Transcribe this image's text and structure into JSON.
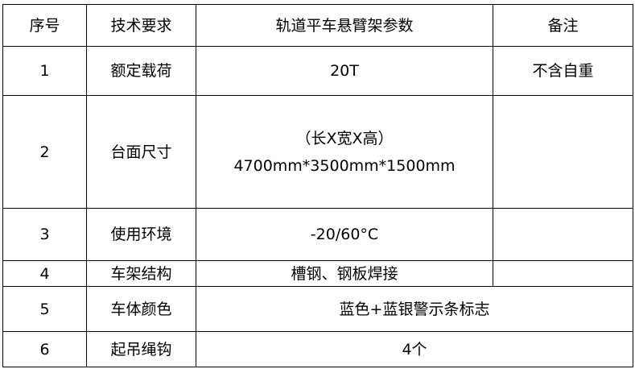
{
  "headers": [
    "序号",
    "技术要求",
    "轨道平车悬臂架参数",
    "备注"
  ],
  "rows": [
    {
      "no": "1",
      "item": "额定载荷",
      "value": "20T",
      "note": "不含自重"
    },
    {
      "no": "2",
      "item": "台面尺寸",
      "value_line1": "（长X宽X高）",
      "value_line2": "4700mm*3500mm*1500mm",
      "note": ""
    },
    {
      "no": "3",
      "item": "使用环境",
      "value": "-20/60°C",
      "note": ""
    },
    {
      "no": "4",
      "item": "车架结构",
      "value": "槽钢、钢板焊接",
      "note": ""
    },
    {
      "no": "5",
      "item": "车体颜色",
      "value": "蓝色+蓝银警示条标志"
    },
    {
      "no": "6",
      "item": "起吊绳钩",
      "value": "4个"
    }
  ]
}
